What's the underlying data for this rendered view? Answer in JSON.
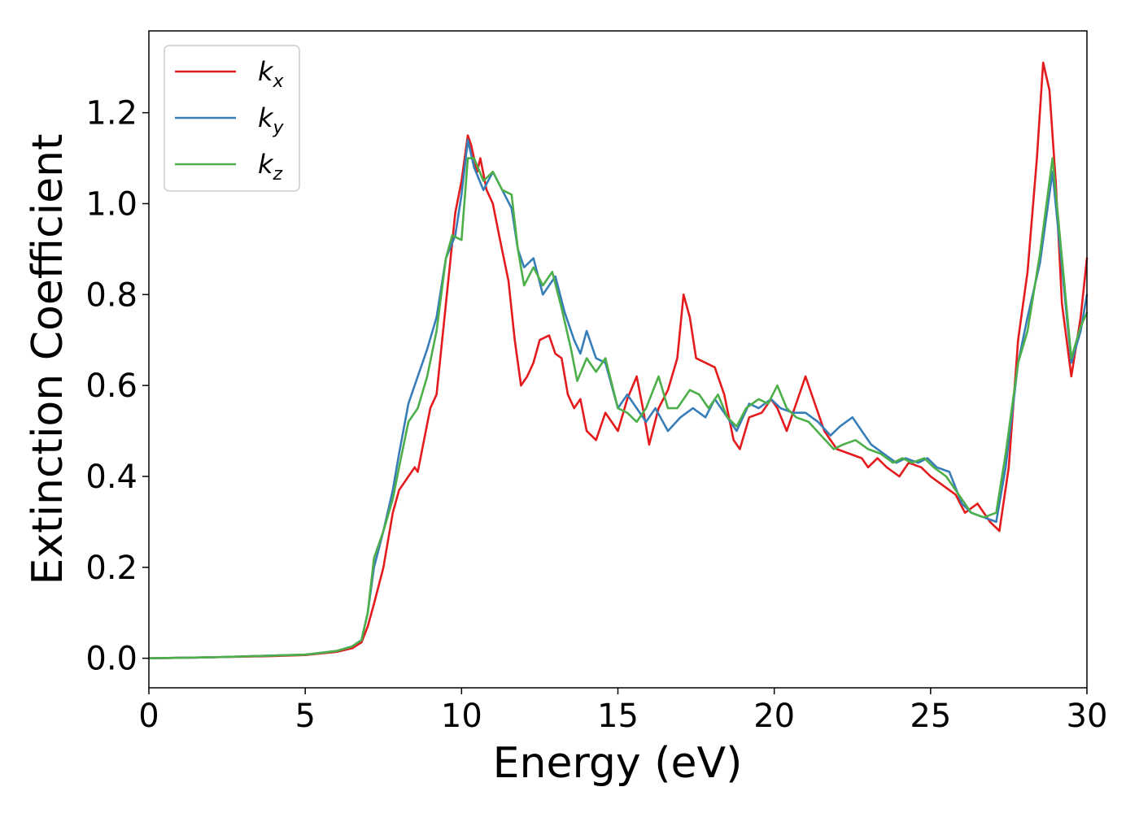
{
  "chart_data": {
    "type": "line",
    "title": "",
    "xlabel": "Energy (eV)",
    "ylabel": "Extinction Coefficient",
    "xlim": [
      0,
      30
    ],
    "ylim": [
      -0.065,
      1.38
    ],
    "xticks": [
      0,
      5,
      10,
      15,
      20,
      25,
      30
    ],
    "xtick_labels": [
      "0",
      "5",
      "10",
      "15",
      "20",
      "25",
      "30"
    ],
    "yticks": [
      0.0,
      0.2,
      0.4,
      0.6,
      0.8,
      1.0,
      1.2
    ],
    "ytick_labels": [
      "0.0",
      "0.2",
      "0.4",
      "0.6",
      "0.8",
      "1.0",
      "1.2"
    ],
    "grid": false,
    "legend_position": "top-left",
    "series": [
      {
        "name": "k",
        "subscript": "x",
        "color": "#e41a1c",
        "points": [
          [
            0,
            0.0
          ],
          [
            2,
            0.002
          ],
          [
            4,
            0.005
          ],
          [
            5,
            0.007
          ],
          [
            6,
            0.014
          ],
          [
            6.5,
            0.022
          ],
          [
            6.8,
            0.035
          ],
          [
            7.0,
            0.07
          ],
          [
            7.2,
            0.12
          ],
          [
            7.5,
            0.2
          ],
          [
            7.8,
            0.32
          ],
          [
            8.0,
            0.37
          ],
          [
            8.2,
            0.39
          ],
          [
            8.5,
            0.42
          ],
          [
            8.6,
            0.41
          ],
          [
            8.8,
            0.48
          ],
          [
            9.0,
            0.55
          ],
          [
            9.2,
            0.58
          ],
          [
            9.5,
            0.78
          ],
          [
            9.8,
            0.98
          ],
          [
            10.0,
            1.05
          ],
          [
            10.2,
            1.15
          ],
          [
            10.3,
            1.13
          ],
          [
            10.5,
            1.07
          ],
          [
            10.6,
            1.1
          ],
          [
            10.8,
            1.03
          ],
          [
            11.0,
            1.0
          ],
          [
            11.2,
            0.93
          ],
          [
            11.5,
            0.83
          ],
          [
            11.7,
            0.7
          ],
          [
            11.9,
            0.6
          ],
          [
            12.1,
            0.62
          ],
          [
            12.3,
            0.65
          ],
          [
            12.5,
            0.7
          ],
          [
            12.8,
            0.71
          ],
          [
            13.0,
            0.67
          ],
          [
            13.2,
            0.66
          ],
          [
            13.4,
            0.58
          ],
          [
            13.6,
            0.55
          ],
          [
            13.8,
            0.57
          ],
          [
            14.0,
            0.5
          ],
          [
            14.3,
            0.48
          ],
          [
            14.6,
            0.54
          ],
          [
            15.0,
            0.5
          ],
          [
            15.3,
            0.57
          ],
          [
            15.6,
            0.62
          ],
          [
            15.8,
            0.55
          ],
          [
            16.0,
            0.47
          ],
          [
            16.3,
            0.55
          ],
          [
            16.6,
            0.59
          ],
          [
            16.9,
            0.66
          ],
          [
            17.1,
            0.8
          ],
          [
            17.3,
            0.75
          ],
          [
            17.5,
            0.66
          ],
          [
            17.8,
            0.65
          ],
          [
            18.1,
            0.64
          ],
          [
            18.4,
            0.58
          ],
          [
            18.7,
            0.48
          ],
          [
            18.9,
            0.46
          ],
          [
            19.2,
            0.53
          ],
          [
            19.6,
            0.54
          ],
          [
            19.9,
            0.57
          ],
          [
            20.1,
            0.55
          ],
          [
            20.4,
            0.5
          ],
          [
            20.7,
            0.56
          ],
          [
            21.0,
            0.62
          ],
          [
            21.3,
            0.56
          ],
          [
            21.6,
            0.5
          ],
          [
            22.0,
            0.46
          ],
          [
            22.4,
            0.45
          ],
          [
            22.8,
            0.44
          ],
          [
            23.0,
            0.42
          ],
          [
            23.3,
            0.44
          ],
          [
            23.6,
            0.42
          ],
          [
            24.0,
            0.4
          ],
          [
            24.3,
            0.43
          ],
          [
            24.7,
            0.42
          ],
          [
            25.0,
            0.4
          ],
          [
            25.4,
            0.38
          ],
          [
            25.8,
            0.36
          ],
          [
            26.1,
            0.32
          ],
          [
            26.5,
            0.34
          ],
          [
            26.9,
            0.3
          ],
          [
            27.2,
            0.28
          ],
          [
            27.5,
            0.42
          ],
          [
            27.8,
            0.7
          ],
          [
            28.1,
            0.85
          ],
          [
            28.4,
            1.1
          ],
          [
            28.6,
            1.31
          ],
          [
            28.8,
            1.25
          ],
          [
            29.0,
            1.05
          ],
          [
            29.2,
            0.78
          ],
          [
            29.5,
            0.62
          ],
          [
            29.8,
            0.75
          ],
          [
            30.0,
            0.88
          ]
        ]
      },
      {
        "name": "k",
        "subscript": "y",
        "color": "#377eb8",
        "points": [
          [
            0,
            0.0
          ],
          [
            2,
            0.002
          ],
          [
            4,
            0.006
          ],
          [
            5,
            0.008
          ],
          [
            6,
            0.016
          ],
          [
            6.5,
            0.026
          ],
          [
            6.8,
            0.04
          ],
          [
            7.0,
            0.1
          ],
          [
            7.2,
            0.2
          ],
          [
            7.5,
            0.28
          ],
          [
            7.8,
            0.37
          ],
          [
            8.0,
            0.45
          ],
          [
            8.3,
            0.56
          ],
          [
            8.6,
            0.62
          ],
          [
            8.9,
            0.68
          ],
          [
            9.2,
            0.75
          ],
          [
            9.5,
            0.88
          ],
          [
            9.8,
            0.93
          ],
          [
            10.0,
            1.02
          ],
          [
            10.2,
            1.14
          ],
          [
            10.4,
            1.08
          ],
          [
            10.7,
            1.03
          ],
          [
            11.0,
            1.07
          ],
          [
            11.3,
            1.03
          ],
          [
            11.6,
            0.99
          ],
          [
            11.8,
            0.9
          ],
          [
            12.0,
            0.86
          ],
          [
            12.3,
            0.88
          ],
          [
            12.6,
            0.8
          ],
          [
            12.8,
            0.82
          ],
          [
            13.0,
            0.84
          ],
          [
            13.3,
            0.76
          ],
          [
            13.6,
            0.7
          ],
          [
            13.8,
            0.67
          ],
          [
            14.0,
            0.72
          ],
          [
            14.3,
            0.66
          ],
          [
            14.6,
            0.65
          ],
          [
            15.0,
            0.55
          ],
          [
            15.3,
            0.58
          ],
          [
            15.6,
            0.55
          ],
          [
            15.9,
            0.52
          ],
          [
            16.2,
            0.55
          ],
          [
            16.6,
            0.5
          ],
          [
            17.0,
            0.53
          ],
          [
            17.4,
            0.55
          ],
          [
            17.8,
            0.53
          ],
          [
            18.1,
            0.57
          ],
          [
            18.4,
            0.54
          ],
          [
            18.8,
            0.5
          ],
          [
            19.2,
            0.56
          ],
          [
            19.5,
            0.55
          ],
          [
            19.9,
            0.57
          ],
          [
            20.2,
            0.55
          ],
          [
            20.6,
            0.54
          ],
          [
            21.0,
            0.54
          ],
          [
            21.4,
            0.52
          ],
          [
            21.8,
            0.49
          ],
          [
            22.1,
            0.51
          ],
          [
            22.5,
            0.53
          ],
          [
            22.8,
            0.5
          ],
          [
            23.1,
            0.47
          ],
          [
            23.5,
            0.45
          ],
          [
            23.9,
            0.43
          ],
          [
            24.2,
            0.44
          ],
          [
            24.6,
            0.43
          ],
          [
            24.9,
            0.44
          ],
          [
            25.2,
            0.42
          ],
          [
            25.6,
            0.41
          ],
          [
            26.0,
            0.34
          ],
          [
            26.3,
            0.32
          ],
          [
            26.7,
            0.31
          ],
          [
            27.1,
            0.3
          ],
          [
            27.4,
            0.42
          ],
          [
            27.8,
            0.65
          ],
          [
            28.1,
            0.75
          ],
          [
            28.5,
            0.87
          ],
          [
            28.9,
            1.07
          ],
          [
            29.2,
            0.86
          ],
          [
            29.5,
            0.65
          ],
          [
            29.8,
            0.72
          ],
          [
            30.0,
            0.8
          ]
        ]
      },
      {
        "name": "k",
        "subscript": "z",
        "color": "#4daf4a",
        "points": [
          [
            0,
            0.0
          ],
          [
            2,
            0.002
          ],
          [
            4,
            0.006
          ],
          [
            5,
            0.008
          ],
          [
            6,
            0.016
          ],
          [
            6.5,
            0.026
          ],
          [
            6.8,
            0.04
          ],
          [
            7.0,
            0.1
          ],
          [
            7.2,
            0.22
          ],
          [
            7.5,
            0.28
          ],
          [
            7.8,
            0.35
          ],
          [
            8.0,
            0.42
          ],
          [
            8.3,
            0.52
          ],
          [
            8.6,
            0.55
          ],
          [
            8.9,
            0.62
          ],
          [
            9.2,
            0.72
          ],
          [
            9.5,
            0.88
          ],
          [
            9.7,
            0.93
          ],
          [
            10.0,
            0.92
          ],
          [
            10.2,
            1.1
          ],
          [
            10.4,
            1.1
          ],
          [
            10.7,
            1.05
          ],
          [
            11.0,
            1.07
          ],
          [
            11.3,
            1.03
          ],
          [
            11.6,
            1.02
          ],
          [
            11.8,
            0.9
          ],
          [
            12.0,
            0.82
          ],
          [
            12.3,
            0.86
          ],
          [
            12.6,
            0.82
          ],
          [
            12.9,
            0.85
          ],
          [
            13.2,
            0.77
          ],
          [
            13.5,
            0.68
          ],
          [
            13.7,
            0.61
          ],
          [
            14.0,
            0.66
          ],
          [
            14.3,
            0.63
          ],
          [
            14.6,
            0.66
          ],
          [
            15.0,
            0.55
          ],
          [
            15.3,
            0.54
          ],
          [
            15.6,
            0.52
          ],
          [
            15.9,
            0.55
          ],
          [
            16.3,
            0.62
          ],
          [
            16.6,
            0.55
          ],
          [
            16.9,
            0.55
          ],
          [
            17.3,
            0.59
          ],
          [
            17.6,
            0.58
          ],
          [
            17.9,
            0.55
          ],
          [
            18.2,
            0.58
          ],
          [
            18.5,
            0.53
          ],
          [
            18.8,
            0.51
          ],
          [
            19.1,
            0.55
          ],
          [
            19.5,
            0.57
          ],
          [
            19.8,
            0.56
          ],
          [
            20.1,
            0.6
          ],
          [
            20.4,
            0.55
          ],
          [
            20.7,
            0.53
          ],
          [
            21.1,
            0.52
          ],
          [
            21.5,
            0.49
          ],
          [
            21.9,
            0.46
          ],
          [
            22.2,
            0.47
          ],
          [
            22.6,
            0.48
          ],
          [
            23.0,
            0.46
          ],
          [
            23.4,
            0.45
          ],
          [
            23.8,
            0.43
          ],
          [
            24.1,
            0.44
          ],
          [
            24.4,
            0.43
          ],
          [
            24.8,
            0.44
          ],
          [
            25.1,
            0.42
          ],
          [
            25.5,
            0.4
          ],
          [
            25.9,
            0.36
          ],
          [
            26.3,
            0.32
          ],
          [
            26.7,
            0.31
          ],
          [
            27.1,
            0.32
          ],
          [
            27.4,
            0.45
          ],
          [
            27.8,
            0.65
          ],
          [
            28.1,
            0.72
          ],
          [
            28.5,
            0.89
          ],
          [
            28.9,
            1.1
          ],
          [
            29.2,
            0.88
          ],
          [
            29.5,
            0.66
          ],
          [
            29.8,
            0.73
          ],
          [
            30.0,
            0.76
          ]
        ]
      }
    ]
  }
}
